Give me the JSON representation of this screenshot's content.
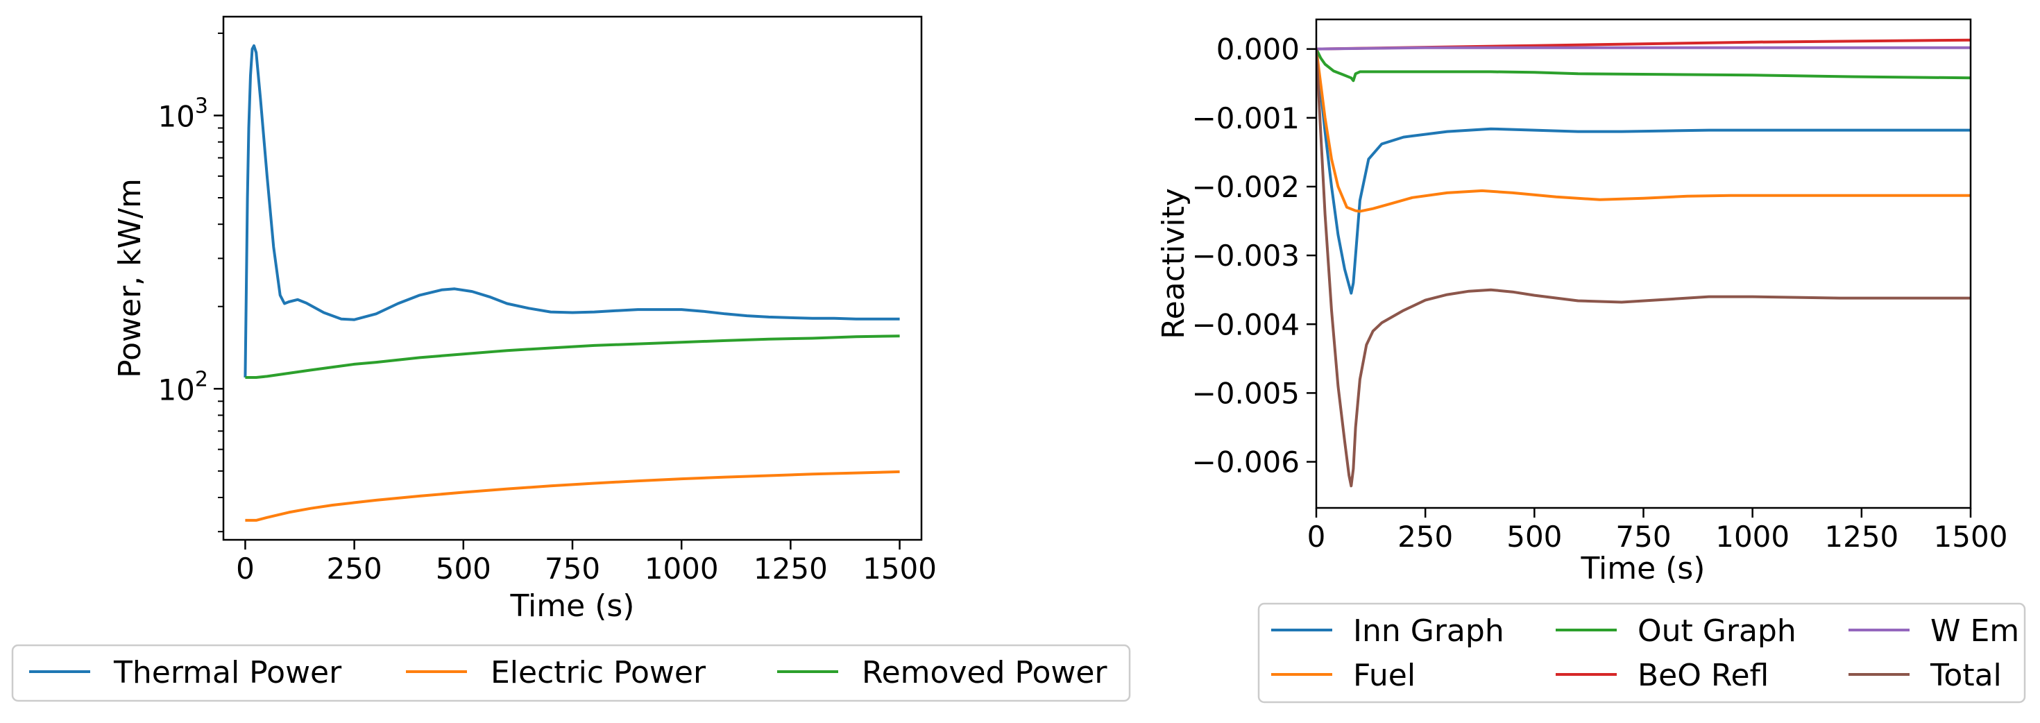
{
  "chart_data": [
    {
      "type": "line",
      "name": "power",
      "title": "",
      "xlabel": "Time (s)",
      "ylabel": "Power, kW/m",
      "yscale": "log",
      "xlim": [
        -50,
        1550
      ],
      "ylim": [
        28,
        2300
      ],
      "xticks": [
        0,
        250,
        500,
        750,
        1000,
        1250,
        1500
      ],
      "xtick_labels": [
        "0",
        "250",
        "500",
        "750",
        "1000",
        "1250",
        "1500"
      ],
      "yticks": [
        100,
        1000
      ],
      "ytick_labels": [
        {
          "base": "10",
          "exp": "2"
        },
        {
          "base": "10",
          "exp": "3"
        }
      ],
      "legend_position": "bottom-center",
      "series": [
        {
          "name": "Thermal Power",
          "color": "#1f77b4",
          "x": [
            0,
            5,
            8,
            12,
            16,
            20,
            25,
            35,
            50,
            65,
            80,
            90,
            100,
            120,
            140,
            180,
            220,
            250,
            300,
            350,
            400,
            450,
            480,
            520,
            560,
            600,
            650,
            700,
            750,
            800,
            850,
            900,
            950,
            1000,
            1050,
            1100,
            1150,
            1200,
            1250,
            1300,
            1350,
            1400,
            1450,
            1500
          ],
          "y": [
            110,
            500,
            900,
            1400,
            1750,
            1800,
            1700,
            1150,
            600,
            330,
            220,
            205,
            208,
            212,
            206,
            190,
            180,
            179,
            188,
            205,
            220,
            230,
            232,
            227,
            217,
            205,
            197,
            191,
            190,
            191,
            193,
            195,
            195,
            195,
            192,
            188,
            185,
            183,
            182,
            181,
            181,
            180,
            180,
            180
          ]
        },
        {
          "name": "Electric Power",
          "color": "#ff7f0e",
          "x": [
            0,
            25,
            50,
            100,
            150,
            200,
            250,
            300,
            400,
            500,
            600,
            700,
            800,
            900,
            1000,
            1100,
            1200,
            1300,
            1400,
            1500
          ],
          "y": [
            33,
            33,
            33.8,
            35.3,
            36.5,
            37.5,
            38.3,
            39.1,
            40.5,
            41.8,
            43,
            44.1,
            45.1,
            46,
            46.8,
            47.5,
            48.1,
            48.7,
            49.2,
            49.7
          ]
        },
        {
          "name": "Removed Power",
          "color": "#2ca02c",
          "x": [
            0,
            25,
            50,
            100,
            150,
            200,
            250,
            300,
            400,
            500,
            600,
            700,
            800,
            900,
            1000,
            1100,
            1200,
            1300,
            1400,
            1500
          ],
          "y": [
            110,
            110,
            111,
            114,
            117,
            120,
            123,
            125,
            130,
            134,
            138,
            141,
            144,
            146,
            148,
            150,
            152,
            153,
            155,
            156
          ]
        }
      ]
    },
    {
      "type": "line",
      "name": "reactivity",
      "title": "",
      "xlabel": "Time (s)",
      "ylabel": "Reactivity",
      "xlim": [
        0,
        1500
      ],
      "ylim": [
        -0.00667,
        0.00043
      ],
      "xticks": [
        0,
        250,
        500,
        750,
        1000,
        1250,
        1500
      ],
      "xtick_labels": [
        "0",
        "250",
        "500",
        "750",
        "1000",
        "1250",
        "1500"
      ],
      "yticks": [
        0,
        -0.001,
        -0.002,
        -0.003,
        -0.004,
        -0.005,
        -0.006
      ],
      "ytick_labels": [
        "0.000",
        "−0.001",
        "−0.002",
        "−0.003",
        "−0.004",
        "−0.005",
        "−0.006"
      ],
      "legend_position": "bottom-center",
      "legend_columns": 3,
      "series": [
        {
          "name": "Inn Graph",
          "color": "#1f77b4",
          "x": [
            0,
            10,
            20,
            35,
            50,
            65,
            80,
            85,
            90,
            100,
            120,
            150,
            200,
            300,
            400,
            500,
            600,
            700,
            800,
            900,
            1000,
            1200,
            1500
          ],
          "y": [
            0,
            -0.0006,
            -0.0012,
            -0.002,
            -0.0027,
            -0.0032,
            -0.00355,
            -0.0034,
            -0.003,
            -0.0022,
            -0.0016,
            -0.00138,
            -0.00128,
            -0.0012,
            -0.00116,
            -0.00118,
            -0.0012,
            -0.0012,
            -0.00119,
            -0.00118,
            -0.00118,
            -0.00118,
            -0.00118
          ]
        },
        {
          "name": "Fuel",
          "color": "#ff7f0e",
          "x": [
            0,
            10,
            20,
            35,
            50,
            70,
            90,
            100,
            130,
            170,
            220,
            300,
            380,
            450,
            550,
            650,
            750,
            850,
            950,
            1050,
            1200,
            1350,
            1500
          ],
          "y": [
            0,
            -0.0005,
            -0.001,
            -0.0016,
            -0.002,
            -0.0023,
            -0.00235,
            -0.00236,
            -0.00232,
            -0.00225,
            -0.00216,
            -0.00209,
            -0.00206,
            -0.00209,
            -0.00215,
            -0.00219,
            -0.00217,
            -0.00214,
            -0.00213,
            -0.00213,
            -0.00213,
            -0.00213,
            -0.00213
          ]
        },
        {
          "name": "Out Graph",
          "color": "#2ca02c",
          "x": [
            0,
            10,
            20,
            40,
            60,
            80,
            85,
            90,
            100,
            150,
            200,
            300,
            400,
            500,
            600,
            800,
            1000,
            1200,
            1500
          ],
          "y": [
            0,
            -0.00013,
            -0.00022,
            -0.00032,
            -0.00037,
            -0.00042,
            -0.00046,
            -0.00036,
            -0.00033,
            -0.00033,
            -0.00033,
            -0.00033,
            -0.00033,
            -0.00034,
            -0.00036,
            -0.00037,
            -0.00038,
            -0.0004,
            -0.00042
          ]
        },
        {
          "name": "BeO Refl",
          "color": "#d62728",
          "x": [
            0,
            500,
            1000,
            1500
          ],
          "y": [
            0,
            5e-05,
            0.0001,
            0.00013
          ]
        },
        {
          "name": "W Em",
          "color": "#9467bd",
          "x": [
            0,
            250,
            500,
            1500
          ],
          "y": [
            0,
            2e-05,
            2e-05,
            2e-05
          ]
        },
        {
          "name": "Total",
          "color": "#8c564b",
          "x": [
            0,
            10,
            20,
            35,
            50,
            65,
            75,
            80,
            85,
            90,
            100,
            115,
            130,
            150,
            200,
            250,
            300,
            350,
            400,
            450,
            500,
            600,
            700,
            800,
            900,
            1000,
            1100,
            1200,
            1300,
            1400,
            1500
          ],
          "y": [
            0,
            -0.0012,
            -0.0024,
            -0.0038,
            -0.0049,
            -0.0057,
            -0.0062,
            -0.00635,
            -0.0061,
            -0.0055,
            -0.0048,
            -0.0043,
            -0.0041,
            -0.00398,
            -0.0038,
            -0.00365,
            -0.00357,
            -0.00352,
            -0.0035,
            -0.00353,
            -0.00358,
            -0.00366,
            -0.00368,
            -0.00364,
            -0.0036,
            -0.0036,
            -0.00361,
            -0.00362,
            -0.00362,
            -0.00362,
            -0.00362
          ]
        }
      ]
    }
  ]
}
